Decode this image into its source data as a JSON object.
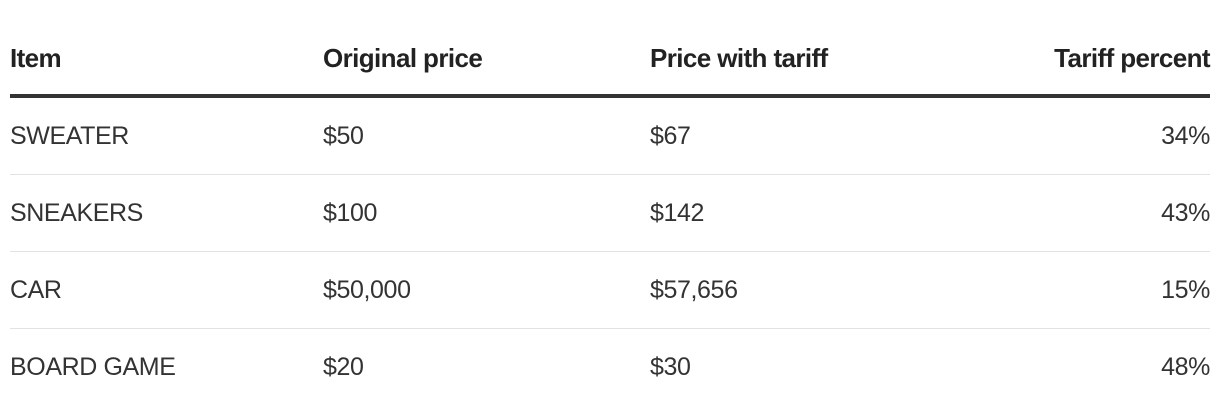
{
  "table": {
    "header": [
      "Item",
      "Original price",
      "Price with tariff",
      "Tariff percent"
    ],
    "rows": [
      [
        "SWEATER",
        "$50",
        "$67",
        "34%"
      ],
      [
        "SNEAKERS",
        "$100",
        "$142",
        "43%"
      ],
      [
        "CAR",
        "$50,000",
        "$57,656",
        "15%"
      ],
      [
        "BOARD GAME",
        "$20",
        "$30",
        "48%"
      ]
    ]
  }
}
